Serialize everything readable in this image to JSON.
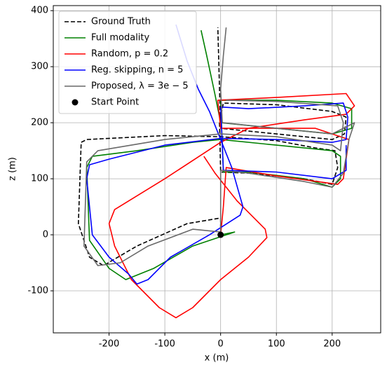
{
  "chart_data": {
    "type": "line",
    "xlabel": "x (m)",
    "ylabel": "z (m)",
    "xlim": [
      -300,
      287
    ],
    "ylim": [
      -175,
      409
    ],
    "xticks": [
      -200,
      -100,
      0,
      100,
      200
    ],
    "yticks": [
      -100,
      0,
      100,
      200,
      300,
      400
    ],
    "grid": true,
    "legend": "upper left",
    "series": [
      {
        "name": "Ground Truth",
        "color": "#000000",
        "style": "dashed",
        "x": [
          0,
          0,
          -60,
          -150,
          -210,
          -235,
          -255,
          -250,
          -240,
          -100,
          0,
          100,
          170,
          205,
          210,
          200,
          150,
          50,
          0,
          -2,
          5,
          100,
          200,
          225,
          222,
          200,
          100,
          0,
          -2,
          -5
        ],
        "values": [
          0,
          30,
          20,
          -20,
          -55,
          -40,
          20,
          165,
          170,
          177,
          175,
          168,
          155,
          150,
          120,
          90,
          100,
          110,
          112,
          200,
          235,
          232,
          220,
          210,
          180,
          170,
          180,
          190,
          260,
          370
        ]
      },
      {
        "name": "Full modality",
        "color": "#008000",
        "style": "solid",
        "x": [
          0,
          25,
          -50,
          -120,
          -170,
          -200,
          -235,
          -240,
          -230,
          -150,
          -50,
          0,
          100,
          200,
          215,
          215,
          200,
          150,
          50,
          5,
          0,
          100,
          200,
          235,
          235,
          200,
          100,
          0,
          -10,
          -25,
          -35
        ],
        "values": [
          0,
          5,
          -20,
          -60,
          -80,
          -60,
          -10,
          120,
          140,
          150,
          165,
          170,
          160,
          150,
          140,
          100,
          85,
          100,
          112,
          112,
          240,
          240,
          235,
          225,
          190,
          180,
          190,
          200,
          250,
          320,
          365
        ]
      },
      {
        "name": "Random, p = 0.2",
        "color": "#ff0000",
        "style": "solid",
        "x": [
          0,
          5,
          10,
          100,
          210,
          220,
          230,
          170,
          50,
          0,
          -5,
          100,
          225,
          240,
          225,
          150,
          50,
          0,
          -100,
          -190,
          -200,
          -190,
          -160,
          -110,
          -80,
          -50,
          0,
          50,
          83,
          80,
          30,
          -10,
          -30
        ],
        "values": [
          0,
          50,
          120,
          105,
          90,
          100,
          170,
          190,
          190,
          190,
          240,
          245,
          252,
          230,
          215,
          205,
          190,
          165,
          100,
          45,
          20,
          -20,
          -80,
          -130,
          -148,
          -130,
          -80,
          -40,
          -5,
          10,
          60,
          110,
          140
        ]
      },
      {
        "name": "Reg. skipping, n = 5",
        "color": "#0000ff",
        "style": "solid",
        "x": [
          -80,
          -60,
          -40,
          -20,
          0,
          20,
          40,
          35,
          -20,
          -90,
          -130,
          -150,
          -165,
          -200,
          -230,
          -240,
          -235,
          -200,
          -100,
          0,
          100,
          200,
          225,
          228,
          220,
          150,
          50,
          0,
          5,
          100,
          200,
          225,
          225
        ],
        "values": [
          375,
          310,
          260,
          220,
          170,
          120,
          50,
          35,
          0,
          -40,
          -80,
          -88,
          -70,
          -40,
          0,
          100,
          125,
          135,
          160,
          172,
          170,
          165,
          170,
          210,
          235,
          230,
          225,
          228,
          115,
          112,
          100,
          115,
          160
        ]
      },
      {
        "name": "Proposed, λ = 3e − 5",
        "color": "#696969",
        "style": "solid",
        "x": [
          10,
          5,
          0,
          3,
          100,
          200,
          240,
          230,
          220,
          200,
          150,
          50,
          0,
          0,
          0,
          -50,
          -130,
          -180,
          -220,
          -245,
          -240,
          -220,
          -100,
          0,
          100,
          200,
          215,
          220,
          210,
          100,
          10
        ],
        "values": [
          370,
          320,
          260,
          200,
          190,
          180,
          200,
          170,
          110,
          85,
          95,
          110,
          115,
          50,
          5,
          10,
          -20,
          -50,
          -55,
          -20,
          130,
          150,
          170,
          180,
          175,
          160,
          150,
          200,
          230,
          238,
          240
        ]
      },
      {
        "name": "Start Point",
        "color": "#000000",
        "style": "marker",
        "x": [
          0
        ],
        "values": [
          0
        ]
      }
    ]
  }
}
